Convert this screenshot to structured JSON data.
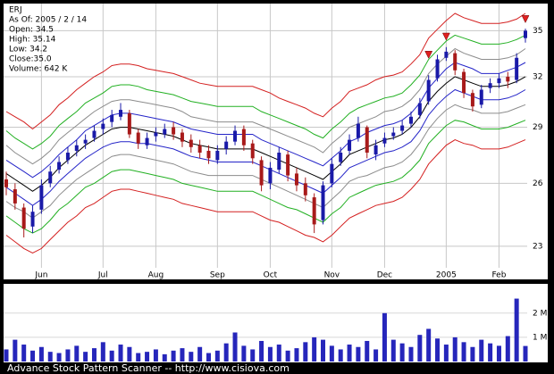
{
  "chart_data": [
    {
      "type": "candlestick",
      "info": [
        "ERJ",
        "As Of: 2005 / 2 / 14",
        "Open: 34.5",
        "High: 35.14",
        "Low: 34.2",
        "Close:35.0",
        "Volume: 642 K"
      ],
      "categories": [
        null,
        null,
        null,
        null,
        "Jun",
        null,
        null,
        null,
        null,
        null,
        null,
        "Jul",
        null,
        null,
        null,
        null,
        null,
        "Aug",
        null,
        null,
        null,
        null,
        null,
        null,
        "Sep",
        null,
        null,
        null,
        null,
        null,
        "Oct",
        null,
        null,
        null,
        null,
        null,
        null,
        "Nov",
        null,
        null,
        null,
        null,
        null,
        "Dec",
        null,
        null,
        null,
        null,
        null,
        null,
        "2005",
        null,
        null,
        null,
        null,
        null,
        "Feb",
        null,
        null,
        null
      ],
      "open": [
        26.2,
        25.7,
        24.8,
        23.9,
        24.7,
        26.0,
        26.7,
        27.2,
        27.7,
        28.1,
        28.4,
        28.9,
        29.3,
        29.6,
        29.8,
        28.7,
        28.0,
        28.5,
        28.6,
        29.0,
        28.7,
        28.3,
        28.0,
        27.7,
        27.2,
        27.8,
        28.2,
        28.9,
        28.1,
        27.2,
        26.0,
        26.7,
        27.5,
        26.5,
        26.0,
        25.3,
        24.2,
        26.0,
        27.1,
        27.7,
        28.4,
        29.0,
        27.5,
        28.1,
        28.5,
        28.8,
        29.2,
        29.7,
        30.5,
        31.9,
        33.2,
        33.5,
        32.3,
        31.0,
        30.3,
        31.3,
        31.6,
        32.0,
        31.8,
        34.5
      ],
      "high": [
        26.6,
        26.0,
        25.0,
        24.9,
        26.2,
        26.9,
        27.4,
        27.9,
        28.3,
        28.6,
        29.1,
        29.5,
        30.0,
        30.4,
        30.0,
        28.9,
        28.7,
        29.0,
        29.2,
        29.3,
        28.9,
        28.6,
        28.3,
        28.0,
        28.0,
        28.5,
        29.1,
        29.1,
        28.3,
        27.4,
        27.1,
        27.9,
        27.7,
        26.8,
        26.3,
        25.5,
        26.1,
        27.3,
        27.9,
        28.6,
        29.6,
        29.1,
        28.3,
        28.7,
        29.0,
        29.4,
        29.9,
        30.7,
        32.1,
        33.4,
        33.9,
        33.7,
        32.5,
        31.2,
        31.5,
        31.9,
        32.2,
        32.3,
        33.5,
        35.14
      ],
      "low": [
        25.4,
        24.7,
        23.4,
        23.6,
        24.5,
        25.8,
        26.5,
        27.0,
        27.4,
        27.8,
        28.2,
        28.6,
        29.0,
        29.4,
        28.4,
        27.8,
        27.8,
        28.2,
        28.4,
        28.3,
        27.9,
        27.6,
        27.3,
        27.0,
        27.0,
        27.5,
        28.0,
        27.7,
        27.0,
        25.6,
        25.7,
        26.5,
        26.1,
        25.6,
        25.1,
        23.6,
        24.0,
        25.8,
        26.9,
        27.5,
        28.2,
        27.3,
        27.2,
        27.9,
        28.3,
        28.6,
        29.0,
        29.5,
        30.3,
        31.7,
        33.0,
        32.1,
        30.7,
        29.9,
        30.1,
        31.0,
        31.3,
        31.3,
        31.6,
        34.2
      ],
      "close": [
        25.8,
        25.0,
        23.8,
        24.6,
        25.9,
        26.6,
        27.1,
        27.6,
        28.0,
        28.3,
        28.8,
        29.2,
        29.7,
        30.0,
        28.6,
        28.1,
        28.4,
        28.7,
        28.9,
        28.6,
        28.2,
        27.9,
        27.6,
        27.3,
        27.7,
        28.2,
        28.8,
        28.0,
        27.3,
        25.9,
        26.8,
        27.6,
        26.4,
        25.9,
        25.4,
        24.0,
        25.9,
        27.0,
        27.6,
        28.3,
        29.2,
        27.6,
        28.0,
        28.4,
        28.7,
        29.1,
        29.6,
        30.4,
        31.8,
        33.1,
        33.6,
        32.4,
        31.0,
        30.2,
        31.2,
        31.6,
        31.9,
        31.7,
        33.2,
        35.0
      ],
      "up_color": "#1a1aa8",
      "down_color": "#a81a1a",
      "series": [
        {
          "color": "#d42020",
          "values": [
            29.9,
            29.6,
            29.3,
            28.9,
            29.3,
            29.7,
            30.3,
            30.7,
            31.2,
            31.6,
            32.0,
            32.3,
            32.7,
            32.8,
            32.8,
            32.7,
            32.5,
            32.4,
            32.3,
            32.2,
            32.0,
            31.8,
            31.6,
            31.5,
            31.4,
            31.4,
            31.4,
            31.4,
            31.4,
            31.2,
            31.0,
            30.7,
            30.5,
            30.3,
            30.1,
            29.8,
            29.6,
            30.1,
            30.5,
            31.1,
            31.3,
            31.5,
            31.8,
            32.0,
            32.1,
            32.3,
            32.8,
            33.4,
            34.5,
            35.1,
            35.7,
            36.2,
            35.9,
            35.7,
            35.5,
            35.5,
            35.5,
            35.6,
            35.8,
            36.2
          ]
        },
        {
          "color": "#22b022",
          "values": [
            28.8,
            28.4,
            28.1,
            27.8,
            28.1,
            28.5,
            29.1,
            29.5,
            29.9,
            30.4,
            30.7,
            31.0,
            31.4,
            31.5,
            31.5,
            31.4,
            31.2,
            31.1,
            31.0,
            30.9,
            30.7,
            30.5,
            30.4,
            30.3,
            30.2,
            30.2,
            30.2,
            30.2,
            30.2,
            29.9,
            29.7,
            29.5,
            29.3,
            29.1,
            28.9,
            28.6,
            28.4,
            28.9,
            29.3,
            29.8,
            30.1,
            30.3,
            30.5,
            30.7,
            30.8,
            31.0,
            31.5,
            32.1,
            33.1,
            33.7,
            34.3,
            34.7,
            34.5,
            34.3,
            34.1,
            34.1,
            34.1,
            34.2,
            34.4,
            34.7
          ]
        },
        {
          "color": "#8c8c8c",
          "values": [
            28.0,
            27.6,
            27.3,
            27.0,
            27.3,
            27.7,
            28.3,
            28.7,
            29.1,
            29.5,
            29.9,
            30.2,
            30.5,
            30.6,
            30.6,
            30.5,
            30.4,
            30.3,
            30.2,
            30.1,
            29.9,
            29.6,
            29.5,
            29.4,
            29.3,
            29.3,
            29.3,
            29.3,
            29.3,
            29.1,
            28.9,
            28.7,
            28.5,
            28.3,
            28.1,
            27.9,
            27.6,
            28.1,
            28.5,
            29.0,
            29.2,
            29.4,
            29.6,
            29.9,
            30.0,
            30.2,
            30.6,
            31.2,
            32.2,
            32.8,
            33.3,
            33.8,
            33.5,
            33.3,
            33.1,
            33.1,
            33.1,
            33.2,
            33.4,
            33.8
          ]
        },
        {
          "color": "#2424c8",
          "values": [
            27.2,
            26.9,
            26.6,
            26.3,
            26.6,
            27.0,
            27.5,
            27.9,
            28.3,
            28.8,
            29.1,
            29.4,
            29.7,
            29.8,
            29.8,
            29.7,
            29.6,
            29.5,
            29.4,
            29.3,
            29.1,
            28.9,
            28.8,
            28.7,
            28.6,
            28.6,
            28.6,
            28.6,
            28.6,
            28.3,
            28.1,
            27.9,
            27.7,
            27.5,
            27.3,
            27.1,
            26.9,
            27.3,
            27.7,
            28.2,
            28.4,
            28.7,
            28.9,
            29.1,
            29.2,
            29.4,
            29.8,
            30.4,
            31.3,
            31.9,
            32.5,
            32.9,
            32.7,
            32.5,
            32.2,
            32.2,
            32.2,
            32.4,
            32.6,
            32.9
          ]
        },
        {
          "color": "#000000",
          "values": [
            26.5,
            26.2,
            25.9,
            25.6,
            25.9,
            26.3,
            26.8,
            27.2,
            27.6,
            28.0,
            28.3,
            28.6,
            28.9,
            29.0,
            29.0,
            28.9,
            28.8,
            28.7,
            28.6,
            28.5,
            28.3,
            28.1,
            28.0,
            27.9,
            27.8,
            27.8,
            27.8,
            27.8,
            27.8,
            27.6,
            27.4,
            27.2,
            27.0,
            26.8,
            26.6,
            26.4,
            26.2,
            26.6,
            27.0,
            27.5,
            27.7,
            27.9,
            28.1,
            28.3,
            28.4,
            28.6,
            29.0,
            29.6,
            30.5,
            31.1,
            31.6,
            32.0,
            31.8,
            31.6,
            31.4,
            31.4,
            31.4,
            31.5,
            31.7,
            32.0
          ]
        },
        {
          "color": "#2424c8",
          "values": [
            25.8,
            25.5,
            25.2,
            24.9,
            25.2,
            25.6,
            26.1,
            26.5,
            26.9,
            27.3,
            27.6,
            27.9,
            28.1,
            28.2,
            28.2,
            28.1,
            28.1,
            28.0,
            27.9,
            27.8,
            27.6,
            27.4,
            27.3,
            27.2,
            27.1,
            27.1,
            27.1,
            27.1,
            27.1,
            26.9,
            26.7,
            26.5,
            26.3,
            26.1,
            25.9,
            25.7,
            25.5,
            25.9,
            26.3,
            26.8,
            27.0,
            27.2,
            27.4,
            27.6,
            27.7,
            27.9,
            28.2,
            28.8,
            29.7,
            30.3,
            30.8,
            31.2,
            31.0,
            30.8,
            30.6,
            30.6,
            30.6,
            30.7,
            30.9,
            31.2
          ]
        },
        {
          "color": "#8c8c8c",
          "values": [
            25.1,
            24.8,
            24.6,
            24.3,
            24.6,
            24.9,
            25.4,
            25.8,
            26.2,
            26.5,
            26.8,
            27.1,
            27.4,
            27.5,
            27.5,
            27.4,
            27.3,
            27.2,
            27.1,
            27.0,
            26.8,
            26.6,
            26.5,
            26.4,
            26.4,
            26.4,
            26.4,
            26.4,
            26.4,
            26.2,
            26.0,
            25.8,
            25.6,
            25.4,
            25.2,
            25.0,
            24.8,
            25.2,
            25.6,
            26.1,
            26.3,
            26.4,
            26.6,
            26.8,
            26.9,
            27.1,
            27.5,
            28.1,
            28.9,
            29.5,
            30.0,
            30.3,
            30.1,
            30.0,
            29.8,
            29.8,
            29.8,
            29.9,
            30.1,
            30.3
          ]
        },
        {
          "color": "#22b022",
          "values": [
            24.4,
            24.1,
            23.8,
            23.6,
            23.8,
            24.2,
            24.7,
            25.0,
            25.4,
            25.8,
            26.0,
            26.3,
            26.6,
            26.7,
            26.7,
            26.6,
            26.5,
            26.4,
            26.3,
            26.2,
            26.0,
            25.9,
            25.8,
            25.7,
            25.6,
            25.6,
            25.6,
            25.6,
            25.6,
            25.4,
            25.2,
            25.0,
            24.8,
            24.7,
            24.5,
            24.3,
            24.1,
            24.5,
            24.8,
            25.3,
            25.5,
            25.7,
            25.9,
            26.0,
            26.1,
            26.3,
            26.7,
            27.2,
            28.1,
            28.6,
            29.1,
            29.4,
            29.3,
            29.1,
            28.9,
            28.9,
            28.9,
            29.0,
            29.2,
            29.4
          ]
        },
        {
          "color": "#d42020",
          "values": [
            23.5,
            23.2,
            22.9,
            22.7,
            22.9,
            23.3,
            23.7,
            24.1,
            24.4,
            24.8,
            25.0,
            25.3,
            25.6,
            25.7,
            25.7,
            25.6,
            25.5,
            25.4,
            25.3,
            25.2,
            25.0,
            24.9,
            24.8,
            24.7,
            24.6,
            24.6,
            24.6,
            24.6,
            24.6,
            24.4,
            24.2,
            24.1,
            23.9,
            23.7,
            23.5,
            23.4,
            23.2,
            23.5,
            23.9,
            24.3,
            24.5,
            24.7,
            24.9,
            25.0,
            25.1,
            25.3,
            25.7,
            26.2,
            27.0,
            27.5,
            28.0,
            28.3,
            28.1,
            28.0,
            27.8,
            27.8,
            27.8,
            27.9,
            28.1,
            28.3
          ]
        }
      ],
      "signals": {
        "color": "#e02020",
        "values": [
          null,
          null,
          null,
          null,
          null,
          null,
          null,
          null,
          null,
          null,
          null,
          null,
          null,
          null,
          null,
          null,
          null,
          null,
          null,
          null,
          null,
          null,
          null,
          null,
          null,
          null,
          null,
          null,
          null,
          null,
          null,
          null,
          null,
          null,
          null,
          null,
          null,
          null,
          null,
          null,
          null,
          null,
          null,
          null,
          null,
          null,
          null,
          null,
          33.4,
          null,
          34.6,
          null,
          null,
          null,
          null,
          null,
          null,
          null,
          null,
          35.8
        ]
      },
      "log_scale": true,
      "grid": true,
      "ylim": [
        21.6,
        36.9
      ],
      "yticks": [
        23,
        26,
        29,
        32,
        35
      ]
    },
    {
      "type": "bar",
      "color": "#2626bb",
      "values": [
        500000,
        900000,
        700000,
        450000,
        600000,
        400000,
        350000,
        500000,
        650000,
        400000,
        550000,
        800000,
        450000,
        700000,
        600000,
        350000,
        400000,
        500000,
        300000,
        450000,
        550000,
        400000,
        600000,
        350000,
        450000,
        750000,
        1200000,
        650000,
        500000,
        850000,
        600000,
        700000,
        450000,
        550000,
        800000,
        1000000,
        900000,
        650000,
        500000,
        700000,
        600000,
        850000,
        500000,
        2000000,
        900000,
        750000,
        600000,
        1100000,
        1350000,
        950000,
        700000,
        1000000,
        800000,
        600000,
        900000,
        750000,
        650000,
        1050000,
        2600000,
        642000
      ],
      "ylim": [
        0,
        3100000
      ],
      "yticks": [
        {
          "value": 1000000,
          "label": "1 M"
        },
        {
          "value": 2000000,
          "label": "2 M"
        }
      ]
    }
  ],
  "footer": "Advance Stock Pattern Scanner -- http://www.cisiova.com"
}
